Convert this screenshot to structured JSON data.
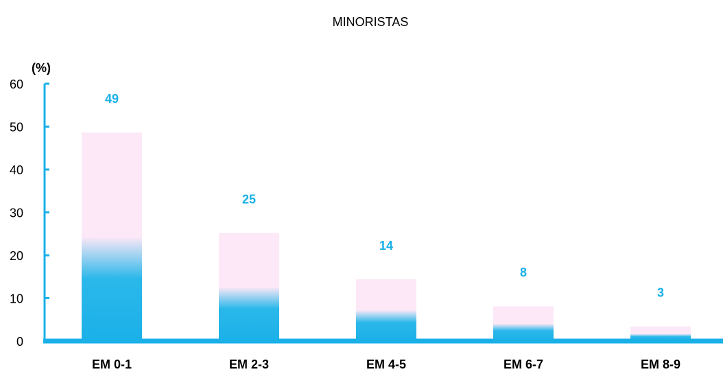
{
  "chart_data": {
    "type": "bar",
    "title": "MINORISTAS",
    "y_label": "(%)",
    "categories": [
      "EM 0-1",
      "EM 2-3",
      "EM 4-5",
      "EM 6-7",
      "EM 8-9"
    ],
    "values": [
      48.6,
      25.2,
      14.4,
      8.1,
      3.4
    ],
    "value_labels": [
      "49",
      "25",
      "14",
      "8",
      "3"
    ],
    "color": "#fde8f7",
    "axis_color": "#1ab0e8",
    "ylim": [
      0,
      60
    ],
    "yticks": [
      0,
      10,
      20,
      30,
      40,
      50,
      60
    ]
  }
}
